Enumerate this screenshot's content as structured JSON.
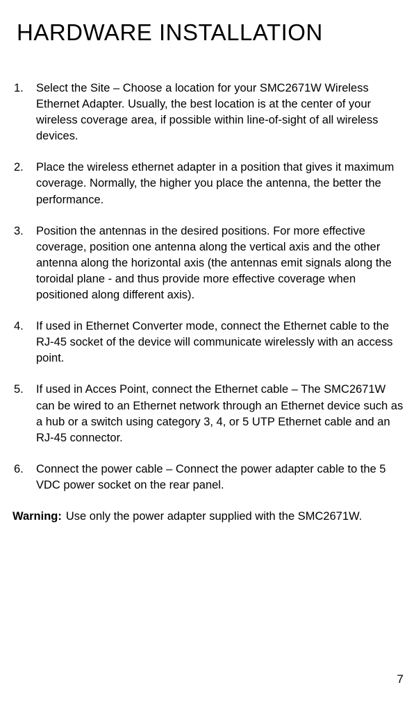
{
  "title": "HARDWARE INSTALLATION",
  "steps": [
    {
      "number": "1.",
      "text": "Select the Site – Choose a location for your SMC2671W Wireless Ethernet Adapter. Usually, the best location is at the center of your wireless coverage area, if possible within line-of-sight of all wireless devices."
    },
    {
      "number": "2.",
      "text": "Place the wireless ethernet adapter in a position that gives it maximum coverage. Normally, the higher you place the antenna, the better the performance."
    },
    {
      "number": "3.",
      "text": "Position the antennas in the desired positions. For more effective coverage, position one antenna along the vertical axis and the other antenna along the horizontal axis (the antennas emit signals along the toroidal plane - and thus provide more effective coverage when positioned along different axis)."
    },
    {
      "number": "4.",
      "text": "If used in Ethernet Converter mode, connect the Ethernet cable to the RJ-45 socket of the device will communicate wirelessly with an access point."
    },
    {
      "number": "5.",
      "text": "If used in Acces Point, connect the Ethernet cable – The SMC2671W can be wired to an Ethernet network through an Ethernet device such as a hub or a switch using category 3, 4, or 5 UTP Ethernet cable and an RJ-45 connector."
    },
    {
      "number": "6.",
      "text": "Connect the power cable – Connect the power adapter cable to the 5 VDC power socket on the rear panel."
    }
  ],
  "warning": {
    "label": "Warning:",
    "text": "Use only the power adapter supplied with the SMC2671W."
  },
  "pageNumber": "7"
}
